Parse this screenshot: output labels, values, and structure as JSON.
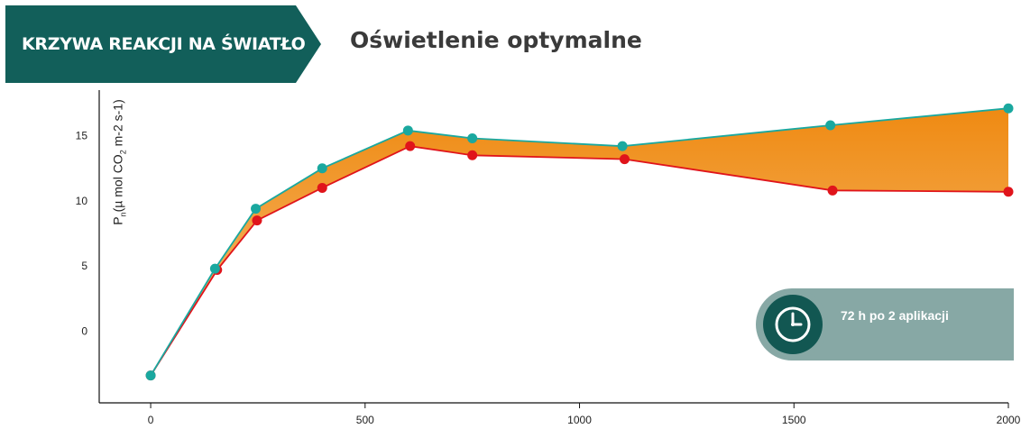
{
  "header": {
    "tag_label": "KRZYWA REAKCJI NA ŚWIATŁO",
    "subtitle": "Oświetlenie optymalne"
  },
  "badge": {
    "text": "72 h po 2 aplikacji",
    "icon": "clock-icon"
  },
  "colors": {
    "tag_bg": "#125f5a",
    "treated_series": "#1aa89f",
    "control_series": "#e0141b",
    "fill_top": "#ef8a12",
    "fill_bottom": "#f6c07a",
    "badge_bg": "#87a8a5",
    "badge_circle": "#125752"
  },
  "chart_data": {
    "type": "line",
    "title": "",
    "xlabel": "",
    "ylabel_main": "P",
    "ylabel_sub": "n",
    "ylabel_rest": "(µ mol CO",
    "ylabel_sub2": "2",
    "ylabel_end": " m-2 s-1)",
    "xlim": [
      -120,
      2000
    ],
    "ylim": [
      -5.5,
      18.5
    ],
    "x_ticks": [
      0,
      500,
      1000,
      1500,
      2000
    ],
    "y_ticks": [
      0,
      5,
      10,
      15
    ],
    "area_between_series": true,
    "series": [
      {
        "key": "treated",
        "color": "#1aa89f",
        "x": [
          0,
          150,
          245,
          400,
          600,
          750,
          1100,
          1585,
          2000
        ],
        "y": [
          -3.4,
          4.8,
          9.4,
          12.5,
          15.4,
          14.8,
          14.2,
          15.8,
          17.1
        ]
      },
      {
        "key": "control",
        "color": "#e0141b",
        "x": [
          0,
          155,
          248,
          400,
          605,
          750,
          1105,
          1590,
          2000
        ],
        "y": [
          -3.4,
          4.7,
          8.5,
          11.0,
          14.2,
          13.5,
          13.2,
          10.8,
          10.7
        ]
      }
    ]
  }
}
